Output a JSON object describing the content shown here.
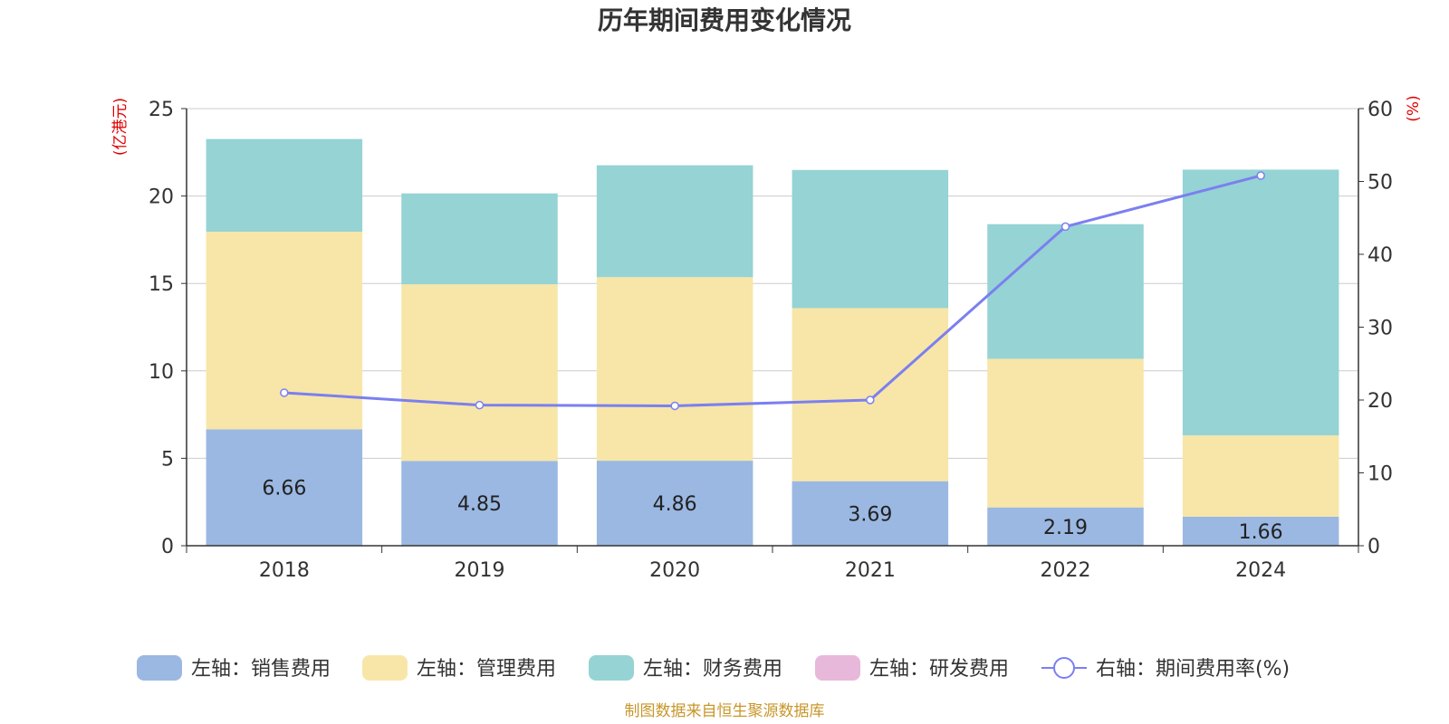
{
  "chart_data": {
    "type": "bar",
    "title": "历年期间费用变化情况",
    "left_axis_unit": "(亿港元)",
    "right_axis_unit": "(%)",
    "categories": [
      "2018",
      "2019",
      "2020",
      "2021",
      "2022",
      "2024"
    ],
    "ylim": [
      0,
      25
    ],
    "y_ticks": [
      "0",
      "5",
      "10",
      "15",
      "20",
      "25"
    ],
    "y2lim": [
      0,
      60
    ],
    "y2_ticks": [
      "0",
      "10",
      "20",
      "30",
      "40",
      "50",
      "60"
    ],
    "grid": true,
    "legend_position": "bottom",
    "series": [
      {
        "name": "左轴：销售费用",
        "type": "bar",
        "stack": true,
        "color": "#9bb8e2",
        "values": [
          6.66,
          4.85,
          4.86,
          3.69,
          2.19,
          1.66
        ],
        "labels": [
          "6.66",
          "4.85",
          "4.86",
          "3.69",
          "2.19",
          "1.66"
        ]
      },
      {
        "name": "左轴：管理费用",
        "type": "bar",
        "stack": true,
        "color": "#f7e6a8",
        "values": [
          11.3,
          10.1,
          10.5,
          9.9,
          8.5,
          4.65
        ]
      },
      {
        "name": "左轴：财务费用",
        "type": "bar",
        "stack": true,
        "color": "#96d3d4",
        "values": [
          5.3,
          5.2,
          6.4,
          7.9,
          7.7,
          15.2
        ]
      },
      {
        "name": "左轴：研发费用",
        "type": "bar",
        "stack": true,
        "color": "#e8b8da",
        "values": [
          0,
          0,
          0,
          0,
          0,
          0
        ]
      },
      {
        "name": "右轴：期间费用率(%)",
        "type": "line",
        "axis": "right",
        "color": "#7b7ff0",
        "values": [
          21.0,
          19.3,
          19.2,
          20.0,
          43.8,
          50.8
        ]
      }
    ]
  },
  "source": "制图数据来自恒生聚源数据库"
}
